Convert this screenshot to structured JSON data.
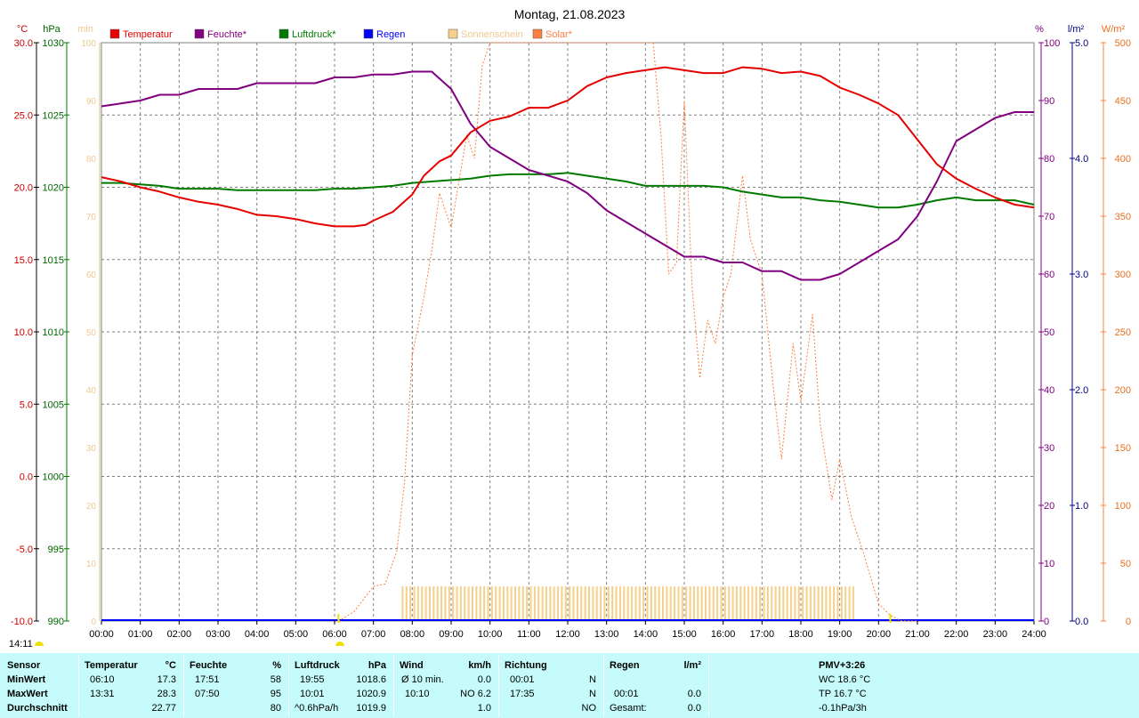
{
  "title": "Montag, 21.08.2023",
  "timestamp": "14:11",
  "units": {
    "temp": "°C",
    "pressure": "hPa",
    "sun": "min",
    "humidity": "%",
    "rain": "l/m²",
    "solar": "W/m²"
  },
  "legend": [
    {
      "label": "Temperatur",
      "color": "#e60000"
    },
    {
      "label": "Feuchte*",
      "color": "#800080"
    },
    {
      "label": "Luftdruck*",
      "color": "#007a00"
    },
    {
      "label": "Regen",
      "color": "#0000ff"
    },
    {
      "label": "Sonnenschein",
      "color": "#f5d08a"
    },
    {
      "label": "Solar*",
      "color": "#ff7f3f"
    }
  ],
  "colors": {
    "temp": "#e60000",
    "humidity": "#800080",
    "pressure": "#007a00",
    "rain": "#0000ff",
    "sun": "#f5d08a",
    "solar": "#ff8040",
    "grid": "#808080"
  },
  "chart_data": {
    "type": "line",
    "x_unit": "time of day",
    "x_ticks": [
      "00:00",
      "01:00",
      "02:00",
      "03:00",
      "04:00",
      "05:00",
      "06:00",
      "07:00",
      "08:00",
      "09:00",
      "10:00",
      "11:00",
      "12:00",
      "13:00",
      "14:00",
      "15:00",
      "16:00",
      "17:00",
      "18:00",
      "19:00",
      "20:00",
      "21:00",
      "22:00",
      "23:00",
      "24:00"
    ],
    "axes": {
      "temp": {
        "ticks": [
          "30.0",
          "25.0",
          "20.0",
          "15.0",
          "10.0",
          "5.0",
          "0.0",
          "-5.0",
          "-10.0"
        ],
        "range": [
          -10,
          30
        ]
      },
      "pressure": {
        "ticks": [
          "1030",
          "1025",
          "1020",
          "1015",
          "1010",
          "1005",
          "1000",
          "995",
          "990"
        ],
        "range": [
          990,
          1030
        ]
      },
      "sun": {
        "ticks": [
          "100",
          "90",
          "80",
          "70",
          "60",
          "50",
          "40",
          "30",
          "20",
          "10",
          "0"
        ],
        "range": [
          0,
          100
        ]
      },
      "humidity": {
        "ticks": [
          "100",
          "90",
          "80",
          "70",
          "60",
          "50",
          "40",
          "30",
          "20",
          "10",
          "0"
        ],
        "range": [
          0,
          100
        ]
      },
      "rain": {
        "ticks": [
          "5.0",
          "4.0",
          "3.0",
          "2.0",
          "1.0",
          "0.0"
        ],
        "range": [
          0,
          5
        ]
      },
      "solar": {
        "ticks": [
          "500",
          "450",
          "400",
          "350",
          "300",
          "250",
          "200",
          "150",
          "100",
          "50",
          "0"
        ],
        "range": [
          0,
          500
        ]
      }
    },
    "series": [
      {
        "name": "Temperatur",
        "axis": "temp",
        "x": [
          0,
          0.5,
          1,
          1.5,
          2,
          2.5,
          3,
          3.5,
          4,
          4.5,
          5,
          5.5,
          6,
          6.5,
          6.8,
          7,
          7.5,
          8,
          8.3,
          8.7,
          9,
          9.5,
          10,
          10.5,
          11,
          11.5,
          12,
          12.5,
          13,
          13.5,
          14,
          14.5,
          15,
          15.5,
          16,
          16.5,
          17,
          17.5,
          18,
          18.5,
          19,
          19.5,
          20,
          20.5,
          21,
          21.5,
          22,
          22.5,
          23,
          23.5,
          24
        ],
        "values": [
          20.7,
          20.4,
          20.0,
          19.7,
          19.3,
          19.0,
          18.8,
          18.5,
          18.1,
          18.0,
          17.8,
          17.5,
          17.3,
          17.3,
          17.4,
          17.7,
          18.3,
          19.5,
          20.8,
          21.8,
          22.2,
          23.8,
          24.6,
          24.9,
          25.5,
          25.5,
          26.0,
          27.0,
          27.6,
          27.9,
          28.1,
          28.3,
          28.1,
          27.9,
          27.9,
          28.3,
          28.2,
          27.9,
          28.0,
          27.7,
          26.9,
          26.4,
          25.8,
          25.0,
          23.3,
          21.6,
          20.6,
          19.9,
          19.3,
          18.8,
          18.6
        ]
      },
      {
        "name": "Feuchte*",
        "axis": "humidity",
        "x": [
          0,
          0.5,
          1,
          1.5,
          2,
          2.5,
          3,
          3.5,
          4,
          4.5,
          5,
          5.5,
          6,
          6.5,
          7,
          7.5,
          8,
          8.5,
          9,
          9.5,
          10,
          10.5,
          11,
          11.5,
          12,
          12.5,
          13,
          13.5,
          14,
          14.5,
          15,
          15.5,
          16,
          16.5,
          17,
          17.5,
          18,
          18.5,
          19,
          19.5,
          20,
          20.5,
          21,
          21.5,
          22,
          22.5,
          23,
          23.5,
          24
        ],
        "values": [
          89,
          89.5,
          90,
          91,
          91,
          92,
          92,
          92,
          93,
          93,
          93,
          93,
          94,
          94,
          94.5,
          94.5,
          95,
          95,
          92,
          86,
          82,
          80,
          78,
          77,
          76,
          74,
          71,
          69,
          67,
          65,
          63,
          63,
          62,
          62,
          60.5,
          60.5,
          59,
          59,
          60,
          62,
          64,
          66,
          70,
          76,
          83,
          85,
          87,
          88,
          88
        ]
      },
      {
        "name": "Luftdruck*",
        "axis": "pressure",
        "x": [
          0,
          0.5,
          1,
          1.5,
          2,
          2.5,
          3,
          3.5,
          4,
          4.5,
          5,
          5.5,
          6,
          6.5,
          7,
          7.5,
          8,
          8.5,
          9,
          9.5,
          10,
          10.5,
          11,
          11.5,
          12,
          12.5,
          13,
          13.5,
          14,
          14.5,
          15,
          15.5,
          16,
          16.5,
          17,
          17.5,
          18,
          18.5,
          19,
          19.5,
          20,
          20.5,
          21,
          21.5,
          22,
          22.5,
          23,
          23.5,
          24
        ],
        "values": [
          1020.3,
          1020.3,
          1020.2,
          1020.1,
          1019.9,
          1019.9,
          1019.9,
          1019.8,
          1019.8,
          1019.8,
          1019.8,
          1019.8,
          1019.9,
          1019.9,
          1020.0,
          1020.1,
          1020.3,
          1020.4,
          1020.5,
          1020.6,
          1020.8,
          1020.9,
          1020.9,
          1020.9,
          1021.0,
          1020.8,
          1020.6,
          1020.4,
          1020.1,
          1020.1,
          1020.1,
          1020.1,
          1020.0,
          1019.7,
          1019.5,
          1019.3,
          1019.3,
          1019.1,
          1019.0,
          1018.8,
          1018.6,
          1018.6,
          1018.8,
          1019.1,
          1019.3,
          1019.1,
          1019.1,
          1019.1,
          1018.8
        ]
      },
      {
        "name": "Solar*",
        "axis": "solar",
        "style": "dotted",
        "x": [
          6.1,
          6.5,
          7,
          7.3,
          7.6,
          7.8,
          8,
          8.3,
          8.5,
          8.7,
          9,
          9.2,
          9.4,
          9.6,
          9.8,
          10,
          10.3,
          10.5,
          11,
          11.3,
          11.5,
          11.8,
          12,
          12.5,
          12.7,
          13,
          13.3,
          13.5,
          13.7,
          13.9,
          14,
          14.2,
          14.4,
          14.6,
          14.8,
          15,
          15.2,
          15.4,
          15.6,
          15.8,
          16,
          16.2,
          16.5,
          16.7,
          17,
          17.3,
          17.5,
          17.8,
          18,
          18.3,
          18.5,
          18.8,
          19,
          19.3,
          19.6,
          20,
          20.3,
          20.6,
          21
        ],
        "values": [
          0,
          8,
          30,
          32,
          60,
          120,
          230,
          280,
          320,
          370,
          340,
          380,
          420,
          400,
          480,
          620,
          700,
          720,
          680,
          650,
          590,
          520,
          560,
          590,
          640,
          620,
          700,
          650,
          550,
          610,
          600,
          580,
          420,
          300,
          310,
          450,
          290,
          210,
          260,
          240,
          280,
          300,
          385,
          330,
          300,
          200,
          140,
          240,
          190,
          265,
          170,
          105,
          140,
          90,
          60,
          15,
          5,
          0,
          0
        ]
      },
      {
        "name": "Sonnenschein",
        "axis": "sun",
        "style": "bars",
        "from": 7.75,
        "to": 19.35,
        "step": 0.1,
        "value": 6
      }
    ]
  },
  "stats": {
    "headers": {
      "sensor": "Sensor",
      "temp": "Temperatur",
      "temp_unit": "°C",
      "hum": "Feuchte",
      "hum_unit": "%",
      "press": "Luftdruck",
      "press_unit": "hPa",
      "wind": "Wind",
      "wind_unit": "km/h",
      "dir": "Richtung",
      "rain": "Regen",
      "rain_unit": "l/m²",
      "pmv": "PMV+3:26"
    },
    "row_labels": [
      "MinWert",
      "MaxWert",
      "Durchschnitt"
    ],
    "temp": [
      [
        "06:10",
        "17.3"
      ],
      [
        "13:31",
        "28.3"
      ],
      [
        "",
        "22.77"
      ]
    ],
    "hum": [
      [
        "17:51",
        "58"
      ],
      [
        "07:50",
        "95"
      ],
      [
        "",
        "80"
      ]
    ],
    "press": [
      [
        "19:55",
        "1018.6"
      ],
      [
        "10:01",
        "1020.9"
      ],
      [
        "^0.6hPa/h",
        "1019.9"
      ]
    ],
    "wind": [
      [
        "Ø 10 min.",
        "0.0"
      ],
      [
        "10:10",
        "NO 6.2"
      ],
      [
        "",
        "1.0"
      ]
    ],
    "dir": [
      [
        "00:01",
        "N"
      ],
      [
        "17:35",
        "N"
      ],
      [
        "",
        "NO"
      ]
    ],
    "rain": [
      [
        "",
        ""
      ],
      [
        "00:01",
        "0.0"
      ],
      [
        "Gesamt:",
        "0.0"
      ]
    ],
    "pmv": [
      "WC 18.6 °C",
      "TP 16.7 °C",
      "-0.1hPa/3h"
    ]
  }
}
